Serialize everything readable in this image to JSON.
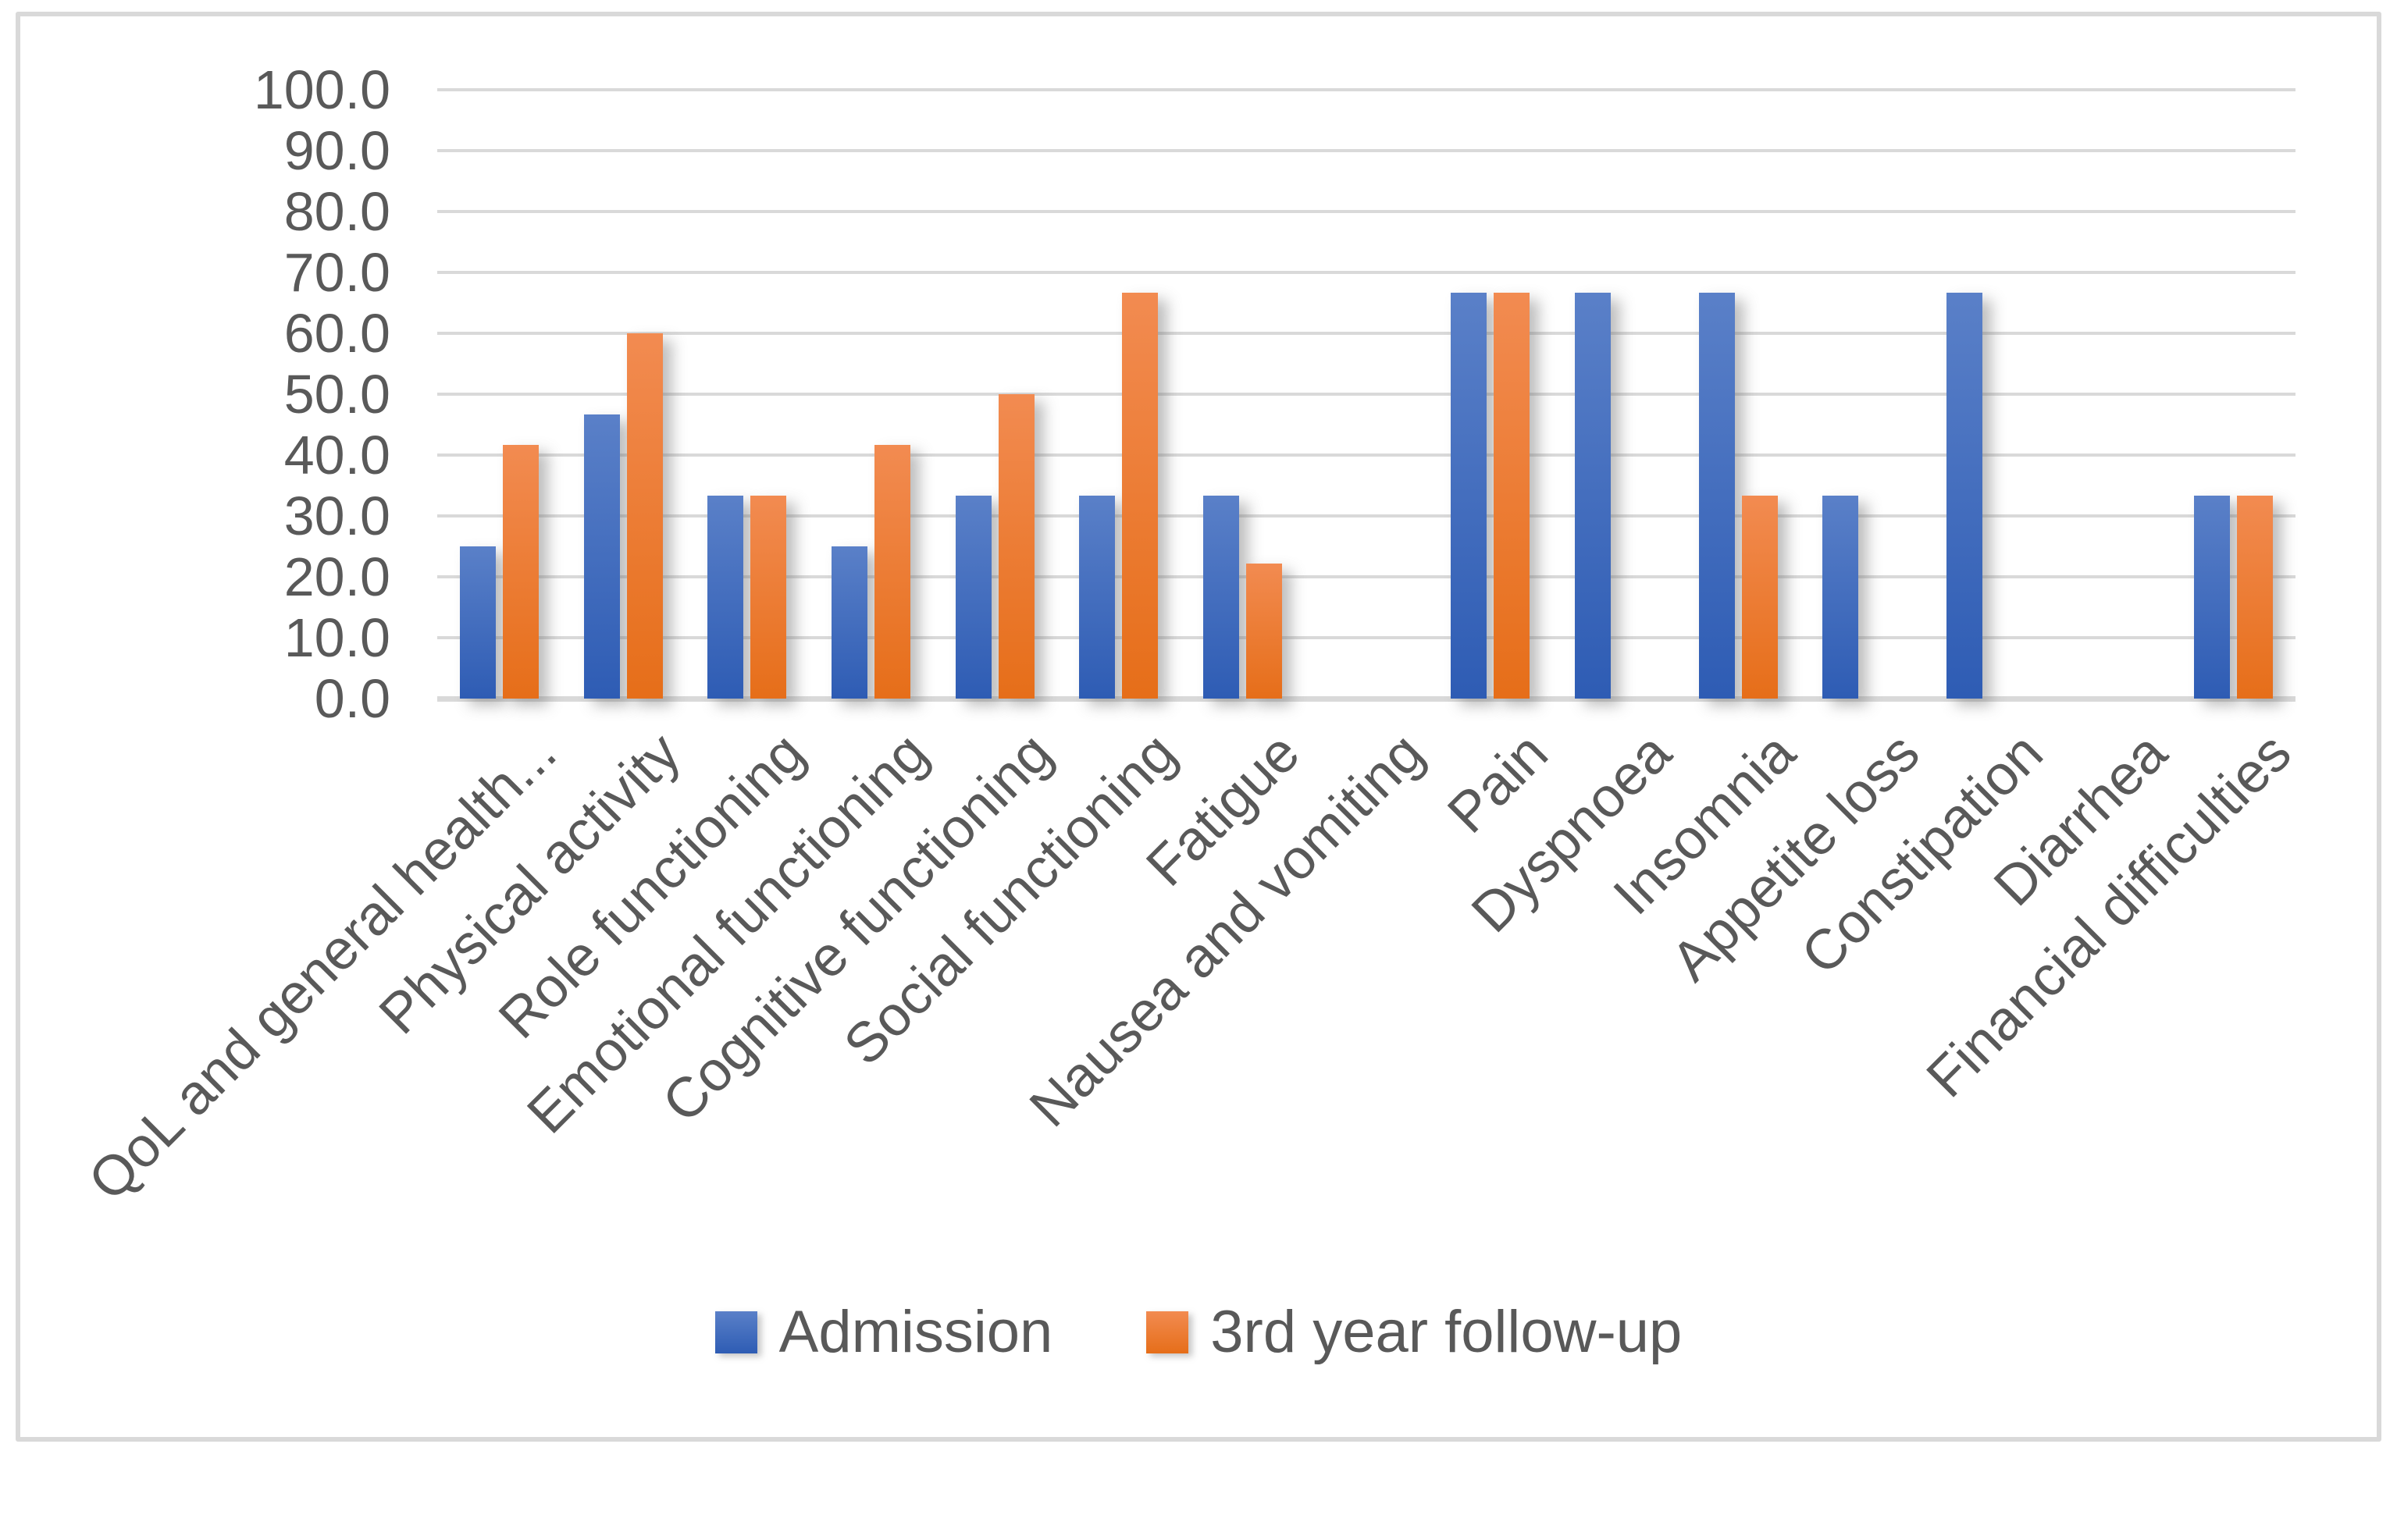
{
  "chart_data": {
    "type": "bar",
    "title": "",
    "xlabel": "",
    "ylabel": "",
    "categories": [
      "QoL and general health...",
      "Physical activity",
      "Role functioning",
      "Emotional functioning",
      "Cognitive functioning",
      "Social functioning",
      "Fatigue",
      "Nausea and vomiting",
      "Pain",
      "Dyspnoea",
      "Insomnia",
      "Appetite loss",
      "Constipation",
      "Diarrhea",
      "Financial difficulties"
    ],
    "series": [
      {
        "name": "Admission",
        "color_top": "#5A80C8",
        "color_bottom": "#2E5CB4",
        "values": [
          25.0,
          46.7,
          33.3,
          25.0,
          33.3,
          33.3,
          33.3,
          0,
          66.7,
          66.7,
          66.7,
          33.3,
          66.7,
          0,
          33.3
        ]
      },
      {
        "name": "3rd year follow-up",
        "color_top": "#F28B51",
        "color_bottom": "#E66E19",
        "values": [
          41.7,
          60.0,
          33.3,
          41.7,
          50.0,
          66.7,
          22.2,
          0,
          66.7,
          0,
          33.3,
          0,
          0,
          0,
          33.3
        ]
      }
    ],
    "ylim": [
      0,
      100
    ],
    "ytick_step": 10,
    "ytick_labels": [
      "100.0",
      "90.0",
      "80.0",
      "70.0",
      "60.0",
      "50.0",
      "40.0",
      "30.0",
      "20.0",
      "10.0",
      "0.0"
    ],
    "grid": true,
    "gridline_color": "#D9D9D9",
    "axis_text_color": "#595959",
    "chart_border_color": "#D9D9D9",
    "background_color": "#FFFFFF",
    "legend_position": "bottom"
  }
}
